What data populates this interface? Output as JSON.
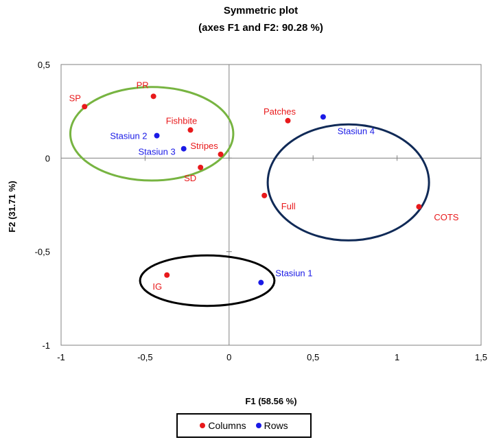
{
  "colors": {
    "columns": "#e8191b",
    "rows": "#1a1ae6",
    "ellipse_green": "#77b441",
    "ellipse_navy": "#102a57",
    "ellipse_black": "#000000",
    "axis": "#808080"
  },
  "chart_data": {
    "type": "scatter",
    "title": "Symmetric plot",
    "subtitle": "(axes F1 and F2: 90.28 %)",
    "xlabel": "F1 (58.56 %)",
    "ylabel": "F2 (31.71 %)",
    "xlim": [
      -1,
      1.5
    ],
    "ylim": [
      -1,
      0.5
    ],
    "x_ticks": [
      "-1",
      "-0,5",
      "0",
      "0,5",
      "1",
      "1,5"
    ],
    "y_ticks": [
      "0,5",
      "0",
      "-0,5",
      "-1"
    ],
    "grid": false,
    "legend_position": "bottom",
    "series": [
      {
        "name": "Columns",
        "color_key": "columns",
        "points": [
          {
            "label": "SP",
            "x": -0.86,
            "y": 0.275
          },
          {
            "label": "PR",
            "x": -0.45,
            "y": 0.33
          },
          {
            "label": "Fishbite",
            "x": -0.23,
            "y": 0.15
          },
          {
            "label": "Stripes",
            "x": -0.05,
            "y": 0.02
          },
          {
            "label": "SD",
            "x": -0.17,
            "y": -0.05
          },
          {
            "label": "Patches",
            "x": 0.35,
            "y": 0.2
          },
          {
            "label": "Full",
            "x": 0.21,
            "y": -0.2
          },
          {
            "label": "COTS",
            "x": 1.13,
            "y": -0.26
          },
          {
            "label": "IG",
            "x": -0.37,
            "y": -0.625
          }
        ]
      },
      {
        "name": "Rows",
        "color_key": "rows",
        "points": [
          {
            "label": "Stasiun 2",
            "x": -0.43,
            "y": 0.12
          },
          {
            "label": "Stasiun 3",
            "x": -0.27,
            "y": 0.05
          },
          {
            "label": "Stasiun 4",
            "x": 0.56,
            "y": 0.22
          },
          {
            "label": "Stasiun 1",
            "x": 0.19,
            "y": -0.665
          }
        ]
      }
    ],
    "ellipses": [
      {
        "color_key": "ellipse_green",
        "cx": -0.46,
        "cy": 0.13,
        "rx": 0.485,
        "ry": 0.25
      },
      {
        "color_key": "ellipse_navy",
        "cx": 0.71,
        "cy": -0.13,
        "rx": 0.48,
        "ry": 0.31
      },
      {
        "color_key": "ellipse_black",
        "cx": -0.13,
        "cy": -0.655,
        "rx": 0.4,
        "ry": 0.135
      }
    ]
  }
}
